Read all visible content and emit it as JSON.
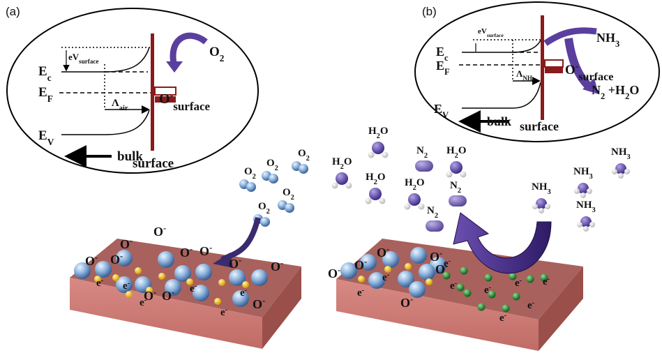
{
  "panel_a": {
    "label": "(a)",
    "ev_surface": [
      "eV",
      "surface"
    ],
    "ec": [
      "E",
      "c"
    ],
    "ef": [
      "E",
      "F"
    ],
    "ev": [
      "E",
      "V"
    ],
    "o_surface": {
      "base": "O",
      "sup": "-",
      "sub": "surface"
    },
    "lambda": [
      "Λ",
      "air"
    ],
    "gas": [
      "O",
      "2"
    ],
    "bulk": "bulk",
    "surface": "surface",
    "molecules": [
      [
        "O",
        "2"
      ],
      [
        "O",
        "2"
      ],
      [
        "O",
        "2"
      ],
      [
        "O",
        "2"
      ],
      [
        "O",
        "2"
      ]
    ],
    "ions": [
      {
        "base": "O",
        "sup": "-"
      },
      {
        "base": "O",
        "sup": "-"
      },
      {
        "base": "O",
        "sup": "-"
      },
      {
        "base": "O",
        "sup": "-"
      },
      {
        "base": "O",
        "sup": "-"
      },
      {
        "base": "O",
        "sup": "-"
      },
      {
        "base": "O",
        "sup": "-"
      },
      {
        "base": "O",
        "sup": "-"
      },
      {
        "base": "O",
        "sup": "-"
      },
      {
        "base": "O",
        "sup": "-"
      },
      {
        "base": "O",
        "sup": "-"
      }
    ],
    "electrons": [
      {
        "base": "e",
        "sup": "-"
      },
      {
        "base": "e",
        "sup": "-"
      },
      {
        "base": "e",
        "sup": "-"
      },
      {
        "base": "e",
        "sup": "-"
      },
      {
        "base": "e",
        "sup": "-"
      },
      {
        "base": "e",
        "sup": "-"
      }
    ]
  },
  "panel_b": {
    "label": "(b)",
    "ev_surface": [
      "eV",
      "surface"
    ],
    "ec": [
      "E",
      "c"
    ],
    "ef": [
      "E",
      "F"
    ],
    "ev": [
      "E",
      "V"
    ],
    "o_surface": {
      "base": "O",
      "sup": "-",
      "sub": "surface"
    },
    "lambda": [
      "Λ",
      "NH₃"
    ],
    "gas": [
      "NH",
      "3"
    ],
    "products": [
      "N",
      "2",
      " +H",
      "2",
      "O"
    ],
    "bulk": "bulk",
    "surface": "surface",
    "water": [
      [
        "H",
        "2",
        "O"
      ],
      [
        "H",
        "2",
        "O"
      ],
      [
        "H",
        "2",
        "O"
      ],
      [
        "H",
        "2",
        "O"
      ],
      [
        "H",
        "2",
        "O"
      ]
    ],
    "nitrogen": [
      [
        "N",
        "2"
      ],
      [
        "N",
        "2"
      ],
      [
        "N",
        "2"
      ]
    ],
    "ammonia": [
      [
        "NH",
        "3"
      ],
      [
        "NH",
        "3"
      ],
      [
        "NH",
        "3"
      ],
      [
        "NH",
        "3"
      ]
    ],
    "ions": [
      {
        "base": "O",
        "sup": "-"
      },
      {
        "base": "O",
        "sup": "-"
      },
      {
        "base": "O",
        "sup": "-"
      },
      {
        "base": "O",
        "sup": "-"
      },
      {
        "base": "O",
        "sup": "-"
      },
      {
        "base": "O",
        "sup": "-"
      }
    ],
    "electrons": [
      {
        "base": "e",
        "sup": "-"
      },
      {
        "base": "e",
        "sup": "-"
      },
      {
        "base": "e",
        "sup": "-"
      },
      {
        "base": "e",
        "sup": "-"
      },
      {
        "base": "e",
        "sup": "-"
      },
      {
        "base": "e",
        "sup": "-"
      },
      {
        "base": "e",
        "sup": "-"
      },
      {
        "base": "e",
        "sup": "-"
      },
      {
        "base": "e",
        "sup": "-"
      }
    ]
  }
}
